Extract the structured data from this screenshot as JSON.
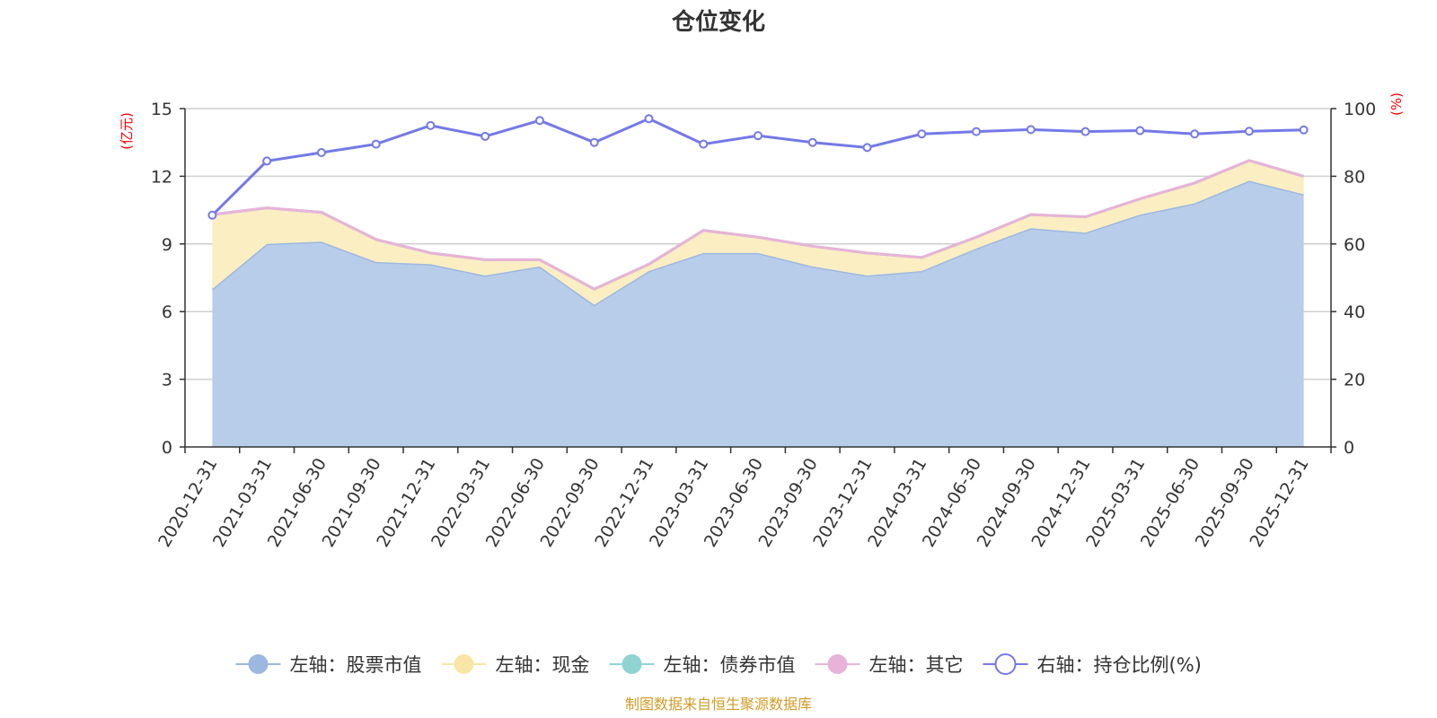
{
  "chart_data": {
    "type": "area",
    "title": "仓位变化",
    "left_unit": "(亿元)",
    "right_unit": "(%)",
    "categories": [
      "2020-12-31",
      "2021-03-31",
      "2021-06-30",
      "2021-09-30",
      "2021-12-31",
      "2022-03-31",
      "2022-06-30",
      "2022-09-30",
      "2022-12-31",
      "2023-03-31",
      "2023-06-30",
      "2023-09-30",
      "2023-12-31",
      "2024-03-31",
      "2024-06-30",
      "2024-09-30",
      "2024-12-31",
      "2025-03-31",
      "2025-06-30",
      "2025-09-30",
      "2025-12-31"
    ],
    "left_axis": {
      "min": 0,
      "max": 15,
      "ticks": [
        0,
        3,
        6,
        9,
        12,
        15
      ]
    },
    "right_axis": {
      "min": 0,
      "max": 100,
      "ticks": [
        0,
        20,
        40,
        60,
        80,
        100
      ]
    },
    "series": [
      {
        "name": "左轴：股票市值",
        "axis": "left",
        "stacked": true,
        "color": "#9db8e0",
        "fill": "#b8cdea",
        "values": [
          7.0,
          9.0,
          9.1,
          8.2,
          8.1,
          7.6,
          8.0,
          6.3,
          7.8,
          8.6,
          8.6,
          8.0,
          7.6,
          7.8,
          8.8,
          9.7,
          9.5,
          10.3,
          10.8,
          11.8,
          11.2
        ]
      },
      {
        "name": "左轴：现金",
        "axis": "left",
        "stacked": true,
        "color": "#f9e6a6",
        "fill": "#faeec2",
        "values": [
          3.3,
          1.6,
          1.3,
          1.0,
          0.5,
          0.7,
          0.3,
          0.7,
          0.3,
          1.0,
          0.7,
          0.9,
          1.0,
          0.6,
          0.5,
          0.6,
          0.7,
          0.7,
          0.9,
          0.9,
          0.8
        ]
      },
      {
        "name": "左轴：债券市值",
        "axis": "left",
        "stacked": true,
        "color": "#8fd3d3",
        "fill": "#b7e3e3",
        "values": [
          0,
          0,
          0,
          0,
          0,
          0,
          0,
          0,
          0,
          0,
          0,
          0,
          0,
          0,
          0,
          0,
          0,
          0,
          0,
          0,
          0
        ]
      },
      {
        "name": "左轴：其它",
        "axis": "left",
        "stacked": true,
        "color": "#e8b3d8",
        "fill": "#efc7e2",
        "values": [
          0,
          0,
          0,
          0,
          0,
          0,
          0,
          0,
          0,
          0,
          0,
          0,
          0,
          0,
          0,
          0,
          0,
          0,
          0,
          0,
          0
        ]
      },
      {
        "name": "右轴：持仓比例(%)",
        "axis": "right",
        "type": "line",
        "color": "#7479e8",
        "values": [
          68.5,
          84.5,
          87.0,
          89.5,
          95.0,
          91.8,
          96.5,
          90.0,
          97.0,
          89.5,
          92.0,
          90.0,
          88.5,
          92.5,
          93.2,
          93.8,
          93.2,
          93.5,
          92.5,
          93.3,
          93.7
        ]
      }
    ],
    "legend_position": "bottom",
    "grid": true
  },
  "source_note": "制图数据来自恒生聚源数据库"
}
